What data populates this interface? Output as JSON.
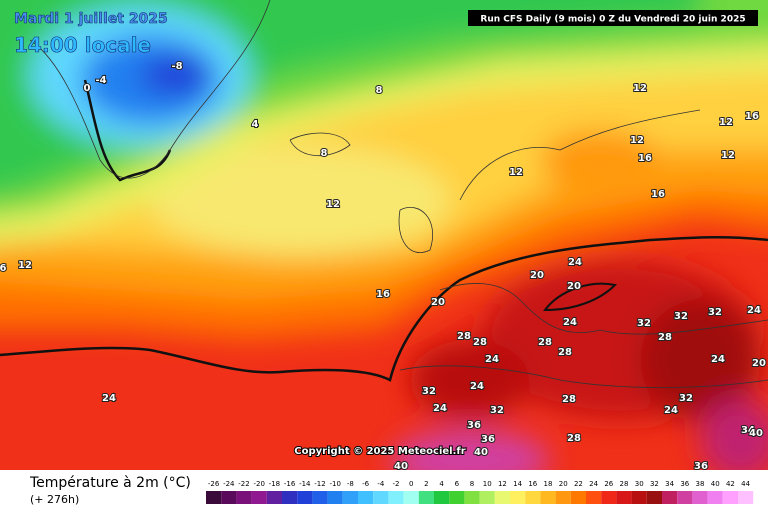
{
  "header": {
    "date": "Mardi 1 juillet 2025",
    "time": "14:00 locale",
    "run": "Run CFS Daily (9 mois) 0 Z du Vendredi 20 juin 2025"
  },
  "copyright": "Copyright © 2025 Meteociel.fr",
  "legend": {
    "title": "Température à 2m (°C)",
    "lead": "(+ 276h)",
    "ticks": [
      -26,
      -24,
      -22,
      -20,
      -18,
      -16,
      -14,
      -12,
      -10,
      -8,
      -6,
      -4,
      -2,
      0,
      2,
      4,
      6,
      8,
      10,
      12,
      14,
      16,
      18,
      20,
      22,
      24,
      26,
      28,
      30,
      32,
      34,
      36,
      38,
      40,
      42,
      44
    ],
    "colors": [
      "#3a0a3a",
      "#5a0a5a",
      "#7a107a",
      "#901890",
      "#6020a0",
      "#3030c0",
      "#2040d8",
      "#2060e8",
      "#2080f0",
      "#30a0f8",
      "#40c0ff",
      "#60d8ff",
      "#80f0ff",
      "#a0fff0",
      "#40e080",
      "#20c840",
      "#40d030",
      "#80e040",
      "#b0f060",
      "#e8f870",
      "#fff060",
      "#ffd840",
      "#ffb820",
      "#ff9810",
      "#ff7800",
      "#ff5010",
      "#f02818",
      "#d81818",
      "#b81010",
      "#981010",
      "#c02060",
      "#d040a0",
      "#e060d0",
      "#f080f0",
      "#ffa0ff",
      "#ffc0ff"
    ]
  },
  "contour_labels": [
    -8,
    -4,
    0,
    4,
    8,
    8,
    12,
    16,
    20,
    24,
    12,
    12,
    16,
    12,
    16,
    12,
    12,
    16,
    20,
    24,
    20,
    24,
    28,
    28,
    24,
    28,
    28,
    32,
    32,
    32,
    24,
    28,
    24,
    20,
    32,
    24,
    24,
    32,
    28,
    24,
    32,
    36,
    36,
    40,
    28,
    36,
    40,
    34,
    40,
    12,
    6
  ]
}
